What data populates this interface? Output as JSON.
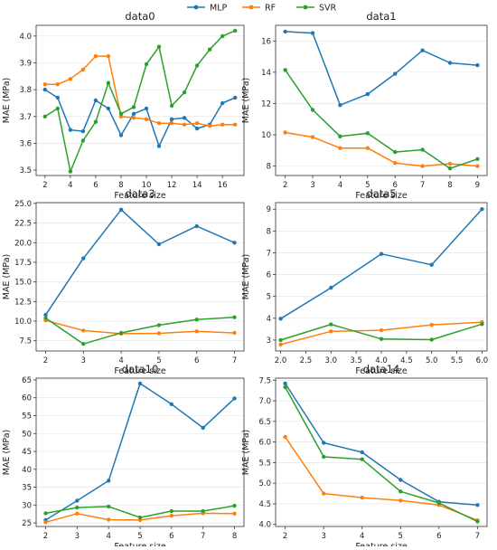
{
  "legend": [
    "MLP",
    "RF",
    "SVR"
  ],
  "colors": {
    "MLP": "#1f77b4",
    "RF": "#ff7f0e",
    "SVR": "#2ca02c"
  },
  "chart_data": [
    {
      "type": "line",
      "title": "data0",
      "xlabel": "Feature size",
      "ylabel": "MAE (MPa)",
      "xlim": [
        1.3,
        17.7
      ],
      "ylim": [
        3.48,
        4.04
      ],
      "xticks": [
        2,
        4,
        6,
        8,
        10,
        12,
        14,
        16
      ],
      "yticks": [
        3.5,
        3.6,
        3.7,
        3.8,
        3.9,
        4.0
      ],
      "ytick_labels": [
        "3.5",
        "3.6",
        "3.7",
        "3.8",
        "3.9",
        "4.0"
      ],
      "x": [
        2,
        3,
        4,
        5,
        6,
        7,
        8,
        9,
        10,
        11,
        12,
        13,
        14,
        15,
        16,
        17
      ],
      "series": [
        {
          "name": "MLP",
          "values": [
            3.8,
            3.77,
            3.65,
            3.645,
            3.76,
            3.73,
            3.63,
            3.71,
            3.73,
            3.59,
            3.69,
            3.695,
            3.655,
            3.67,
            3.75,
            3.77
          ]
        },
        {
          "name": "RF",
          "values": [
            3.82,
            3.82,
            3.84,
            3.875,
            3.925,
            3.925,
            3.7,
            3.695,
            3.69,
            3.675,
            3.675,
            3.67,
            3.675,
            3.665,
            3.67,
            3.67
          ]
        },
        {
          "name": "SVR",
          "values": [
            3.7,
            3.73,
            3.495,
            3.61,
            3.68,
            3.825,
            3.71,
            3.735,
            3.895,
            3.96,
            3.74,
            3.79,
            3.89,
            3.95,
            4.0,
            4.02
          ]
        }
      ]
    },
    {
      "type": "line",
      "title": "data1",
      "xlabel": "Feature size",
      "ylabel": "MAE (MPa)",
      "xlim": [
        1.65,
        9.35
      ],
      "ylim": [
        7.4,
        17.0
      ],
      "xticks": [
        2,
        3,
        4,
        5,
        6,
        7,
        8,
        9
      ],
      "yticks": [
        8,
        10,
        12,
        14,
        16
      ],
      "ytick_labels": [
        "8",
        "10",
        "12",
        "14",
        "16"
      ],
      "x": [
        2,
        3,
        4,
        5,
        6,
        7,
        8,
        9
      ],
      "series": [
        {
          "name": "MLP",
          "values": [
            16.6,
            16.5,
            11.9,
            12.6,
            13.9,
            15.4,
            14.6,
            14.45
          ]
        },
        {
          "name": "RF",
          "values": [
            10.15,
            9.85,
            9.15,
            9.15,
            8.2,
            8.0,
            8.15,
            8.0
          ]
        },
        {
          "name": "SVR",
          "values": [
            14.15,
            11.6,
            9.9,
            10.1,
            8.9,
            9.05,
            7.85,
            8.45
          ]
        }
      ]
    },
    {
      "type": "line",
      "title": "data3",
      "xlabel": "Feature size",
      "ylabel": "MAE (MPa)",
      "xlim": [
        1.75,
        7.25
      ],
      "ylim": [
        6.2,
        25.1
      ],
      "xticks": [
        2,
        3,
        4,
        5,
        6,
        7
      ],
      "yticks": [
        7.5,
        10.0,
        12.5,
        15.0,
        17.5,
        20.0,
        22.5,
        25.0
      ],
      "ytick_labels": [
        "7.5",
        "10.0",
        "12.5",
        "15.0",
        "17.5",
        "20.0",
        "22.5",
        "25.0"
      ],
      "x": [
        2,
        3,
        4,
        5,
        6,
        7
      ],
      "series": [
        {
          "name": "MLP",
          "values": [
            10.8,
            18.0,
            24.2,
            19.8,
            22.1,
            20.0
          ]
        },
        {
          "name": "RF",
          "values": [
            10.1,
            8.8,
            8.4,
            8.45,
            8.7,
            8.5
          ]
        },
        {
          "name": "SVR",
          "values": [
            10.4,
            7.1,
            8.5,
            9.5,
            10.2,
            10.5
          ]
        }
      ]
    },
    {
      "type": "line",
      "title": "data5",
      "xlabel": "Feature size",
      "ylabel": "MAE (MPa)",
      "xlim": [
        1.9,
        6.1
      ],
      "ylim": [
        2.5,
        9.3
      ],
      "xticks": [
        2.0,
        2.5,
        3.0,
        3.5,
        4.0,
        4.5,
        5.0,
        5.5,
        6.0
      ],
      "xtick_labels": [
        "2.0",
        "2.5",
        "3.0",
        "3.5",
        "4.0",
        "4.5",
        "5.0",
        "5.5",
        "6.0"
      ],
      "yticks": [
        3,
        4,
        5,
        6,
        7,
        8,
        9
      ],
      "ytick_labels": [
        "3",
        "4",
        "5",
        "6",
        "7",
        "8",
        "9"
      ],
      "x": [
        2,
        3,
        4,
        5,
        6
      ],
      "series": [
        {
          "name": "MLP",
          "values": [
            3.98,
            5.4,
            6.95,
            6.45,
            9.0
          ]
        },
        {
          "name": "RF",
          "values": [
            2.8,
            3.4,
            3.45,
            3.7,
            3.82
          ]
        },
        {
          "name": "SVR",
          "values": [
            3.0,
            3.72,
            3.05,
            3.02,
            3.73
          ]
        }
      ]
    },
    {
      "type": "line",
      "title": "data10",
      "xlabel": "Feature size",
      "ylabel": "MAE (MPa)",
      "xlim": [
        1.7,
        8.3
      ],
      "ylim": [
        24.0,
        65.5
      ],
      "xticks": [
        2,
        3,
        4,
        5,
        6,
        7,
        8
      ],
      "yticks": [
        25,
        30,
        35,
        40,
        45,
        50,
        55,
        60,
        65
      ],
      "ytick_labels": [
        "25",
        "30",
        "35",
        "40",
        "45",
        "50",
        "55",
        "60",
        "65"
      ],
      "x": [
        2,
        3,
        4,
        5,
        6,
        7,
        8
      ],
      "series": [
        {
          "name": "MLP",
          "values": [
            25.8,
            31.2,
            36.8,
            64.0,
            58.2,
            51.6,
            59.8
          ]
        },
        {
          "name": "RF",
          "values": [
            25.2,
            27.6,
            25.9,
            25.8,
            27.0,
            27.7,
            27.6
          ]
        },
        {
          "name": "SVR",
          "values": [
            27.7,
            29.3,
            29.6,
            26.5,
            28.3,
            28.3,
            29.8
          ]
        }
      ]
    },
    {
      "type": "line",
      "title": "data14",
      "xlabel": "Feature size",
      "ylabel": "MAE (MPa)",
      "xlim": [
        1.75,
        7.25
      ],
      "ylim": [
        3.95,
        7.55
      ],
      "xticks": [
        2,
        3,
        4,
        5,
        6,
        7
      ],
      "yticks": [
        4.0,
        4.5,
        5.0,
        5.5,
        6.0,
        6.5,
        7.0,
        7.5
      ],
      "ytick_labels": [
        "4.0",
        "4.5",
        "5.0",
        "5.5",
        "6.0",
        "6.5",
        "7.0",
        "7.5"
      ],
      "x": [
        2,
        3,
        4,
        5,
        6,
        7
      ],
      "series": [
        {
          "name": "MLP",
          "values": [
            7.42,
            5.98,
            5.75,
            5.08,
            4.55,
            4.47
          ]
        },
        {
          "name": "RF",
          "values": [
            6.12,
            4.75,
            4.65,
            4.58,
            4.47,
            4.1
          ]
        },
        {
          "name": "SVR",
          "values": [
            7.33,
            5.64,
            5.58,
            4.8,
            4.52,
            4.07
          ]
        }
      ]
    }
  ]
}
